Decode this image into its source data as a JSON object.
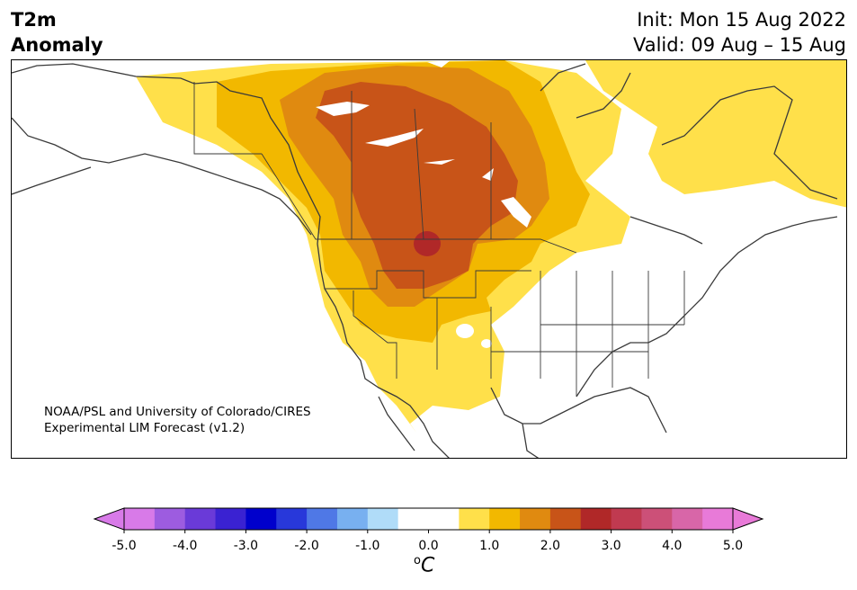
{
  "title": {
    "line1": "T2m",
    "line2": "Anomaly"
  },
  "dates": {
    "init": "Init: Mon 15 Aug 2022",
    "valid": "Valid: 09 Aug – 15 Aug"
  },
  "credit": {
    "line1": "NOAA/PSL and University of Colorado/CIRES",
    "line2": "Experimental LIM Forecast (v1.2)"
  },
  "colorbar": {
    "unit": "oC",
    "ticks": [
      "-5.0",
      "-4.0",
      "-3.0",
      "-2.0",
      "-1.0",
      "0.0",
      "1.0",
      "2.0",
      "3.0",
      "4.0",
      "5.0"
    ],
    "colors": [
      "#d87ae8",
      "#9d5ce0",
      "#6a3ad8",
      "#3a22d2",
      "#0000cc",
      "#2838da",
      "#4f78e6",
      "#78b0f0",
      "#b0dcf8",
      "#ffffff",
      "#ffffff",
      "#ffe04a",
      "#f2b800",
      "#e08a10",
      "#c85418",
      "#b02828",
      "#c03a50",
      "#cc5078",
      "#d866a8",
      "#e87ad8"
    ]
  },
  "anomaly_colors": {
    "c05": "#ffe04a",
    "c10": "#f2b800",
    "c15": "#e08a10",
    "c20": "#c85418",
    "c25": "#b02828"
  }
}
